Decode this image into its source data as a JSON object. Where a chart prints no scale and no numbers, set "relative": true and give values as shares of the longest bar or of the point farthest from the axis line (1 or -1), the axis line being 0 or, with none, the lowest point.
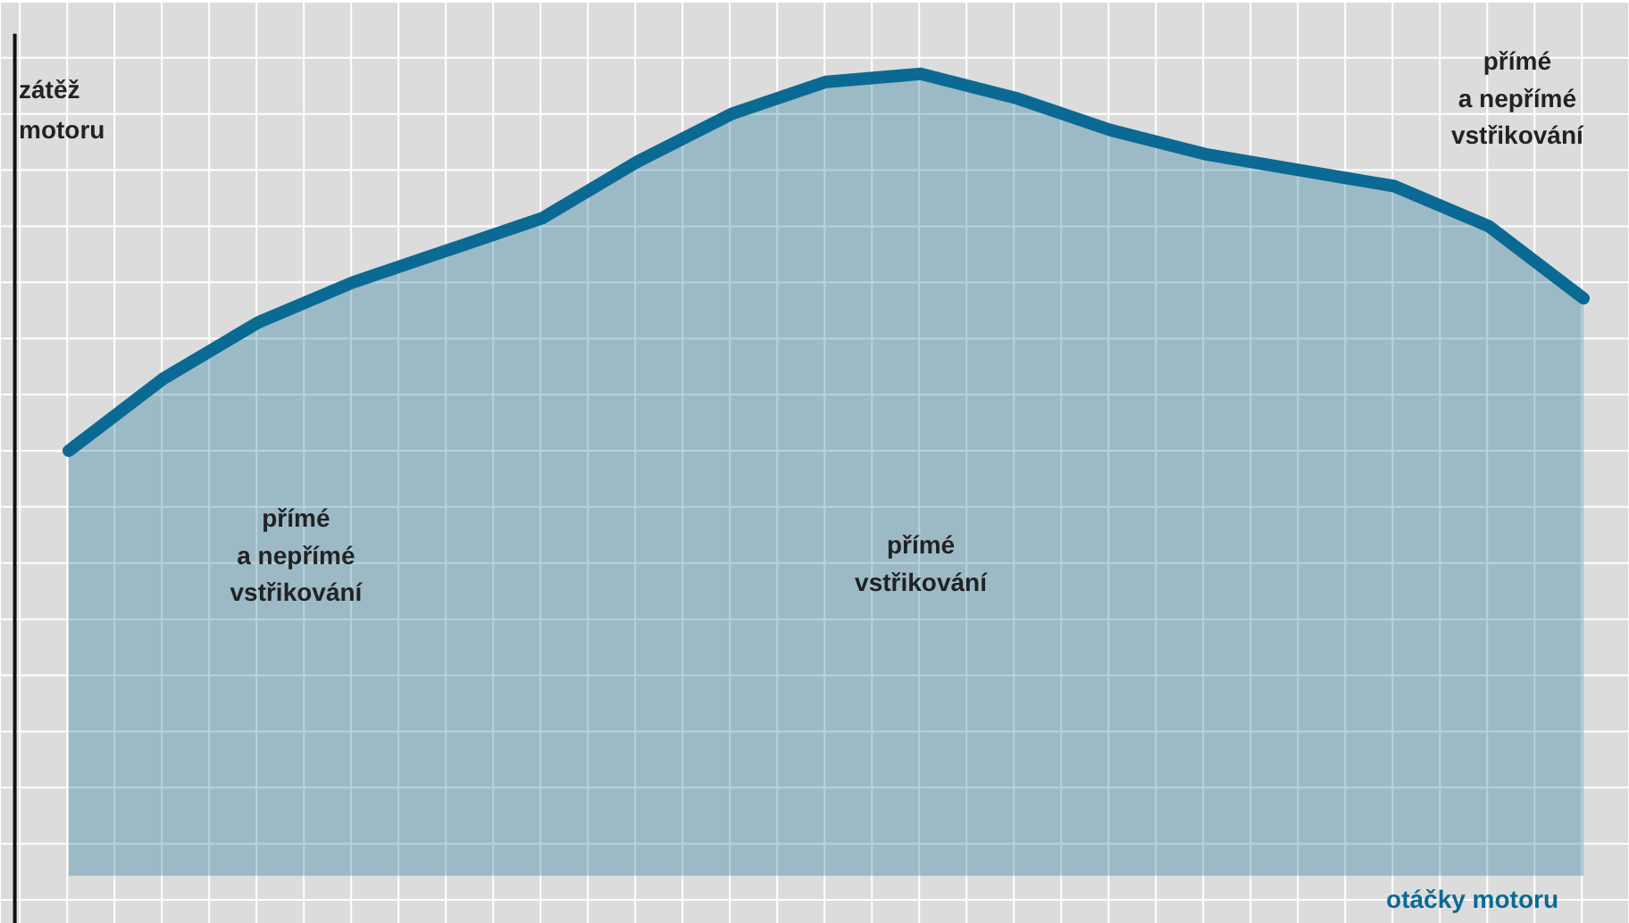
{
  "chart_data": {
    "type": "area",
    "relative": true,
    "xlabel": "otáčky motoru",
    "ylabel": "zátěž motoru",
    "grid": true,
    "categories": [
      null,
      null,
      null,
      null,
      null,
      null,
      null,
      null,
      null,
      null,
      null,
      null,
      null,
      null,
      null,
      null,
      null
    ],
    "series": [
      {
        "color": "#0a6a94",
        "values": [
          0.53,
          0.62,
          0.69,
          0.74,
          0.78,
          0.82,
          0.89,
          0.95,
          0.99,
          1.0,
          0.97,
          0.93,
          0.9,
          0.88,
          0.86,
          0.81,
          0.72
        ]
      }
    ],
    "annotations": [
      "přímé\na nepřímé\nvstřikování",
      "přímé\nvstřikování",
      "přímé\na nepřímé\nvstřikování"
    ]
  }
}
